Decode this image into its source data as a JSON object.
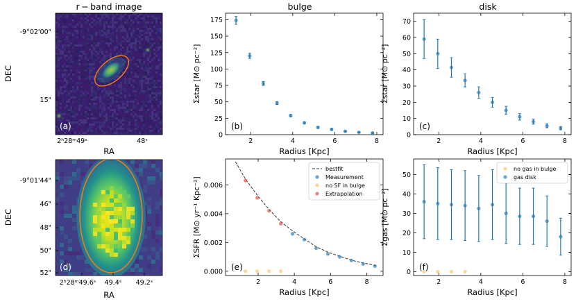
{
  "figure": {
    "col_titles": [
      "r − band image",
      "bulge",
      "disk"
    ]
  },
  "chart_data": [
    {
      "id": "a",
      "type": "image",
      "panel_label": "(a)",
      "xlabel": "RA",
      "ylabel": "DEC",
      "xticks": [
        "2ʰ28ᵐ49ˢ",
        "48ˢ"
      ],
      "yticks": [
        "-9°02'00\"",
        "15\""
      ],
      "colormap": "viridis",
      "ellipse_color": "#ff7f0e"
    },
    {
      "id": "b",
      "type": "scatter",
      "panel_label": "(b)",
      "xlabel": "Radius [Kpc]",
      "ylabel": "Σstar [M⊙ pc⁻²]",
      "xlim": [
        0.8,
        8.3
      ],
      "ylim": [
        0,
        185
      ],
      "xticks": [
        2,
        4,
        6,
        8
      ],
      "yticks": [
        0,
        25,
        50,
        75,
        100,
        125,
        150,
        175
      ],
      "series": [
        {
          "color": "#1f77b4",
          "x": [
            1.3,
            1.95,
            2.6,
            3.25,
            3.9,
            4.55,
            5.2,
            5.85,
            6.5,
            7.15,
            7.8
          ],
          "y": [
            174,
            120,
            78,
            48,
            29,
            18,
            11,
            8,
            5,
            3.5,
            2.5
          ],
          "err": [
            6,
            4,
            3,
            2,
            1.5,
            1.2,
            1,
            0.8,
            0.6,
            0.5,
            0.5
          ]
        }
      ]
    },
    {
      "id": "c",
      "type": "scatter",
      "panel_label": "(c)",
      "xlabel": "Radius [Kpc]",
      "ylabel": "Σstar [M⊙ pc⁻²]",
      "xlim": [
        0.8,
        8.3
      ],
      "ylim": [
        0,
        75
      ],
      "xticks": [
        2,
        4,
        6,
        8
      ],
      "yticks": [
        0,
        10,
        20,
        30,
        40,
        50,
        60,
        70
      ],
      "series": [
        {
          "color": "#1f77b4",
          "x": [
            1.3,
            1.95,
            2.6,
            3.25,
            3.9,
            4.55,
            5.2,
            5.85,
            6.5,
            7.15,
            7.8
          ],
          "y": [
            59,
            50,
            41.5,
            33.5,
            26,
            20,
            15,
            11,
            8,
            5.5,
            4
          ],
          "err": [
            12,
            9,
            6,
            4,
            3.5,
            3,
            2.5,
            2,
            1.5,
            1.2,
            1
          ]
        }
      ]
    },
    {
      "id": "d",
      "type": "image",
      "panel_label": "(d)",
      "xlabel": "RA",
      "ylabel": "DEC",
      "xticks": [
        "2ʰ28ᵐ49.6ˢ",
        "49.4ˢ",
        "49.2ˢ"
      ],
      "yticks": [
        "-9°01'44\"",
        "46\"",
        "48\"",
        "50\"",
        "52\""
      ],
      "colormap": "viridis",
      "ellipse_color": "#ff7f0e"
    },
    {
      "id": "e",
      "type": "scatter",
      "panel_label": "(e)",
      "xlabel": "Radius [Kpc]",
      "ylabel": "ΣSFR [M⊙ yr⁻¹ Kpc⁻²]",
      "xlim": [
        0.2,
        8.9
      ],
      "ylim": [
        -0.0003,
        0.0078
      ],
      "xticks": [
        2,
        4,
        6,
        8
      ],
      "yticks": [
        0.0,
        0.002,
        0.004,
        0.006
      ],
      "ytick_labels": [
        "0.000",
        "0.002",
        "0.004",
        "0.006"
      ],
      "legend": "top-right",
      "bestfit": {
        "name": "bestfit",
        "x": [
          0.75,
          1.3,
          2.0,
          2.6,
          3.2,
          3.9,
          4.6,
          5.2,
          5.9,
          6.6,
          7.2,
          7.9,
          8.5
        ],
        "y": [
          0.0076,
          0.0064,
          0.0052,
          0.0043,
          0.0035,
          0.0028,
          0.0022,
          0.0017,
          0.0013,
          0.001,
          0.00075,
          0.00055,
          0.0004
        ]
      },
      "series": [
        {
          "name": "Measurement",
          "color": "#1f77b4",
          "x": [
            3.9,
            4.55,
            5.2,
            5.85,
            6.5,
            7.15,
            7.8,
            8.45
          ],
          "y": [
            0.0026,
            0.0022,
            0.0016,
            0.0012,
            0.001,
            0.00075,
            0.0005,
            0.00035
          ]
        },
        {
          "name": "no SF in bulge",
          "color": "#ffbe5c",
          "x": [
            1.3,
            1.95,
            2.6,
            3.25
          ],
          "y": [
            0,
            0,
            0,
            0
          ]
        },
        {
          "name": "Extrapolation",
          "color": "#e8413c",
          "x": [
            1.3,
            1.95,
            2.6,
            3.25
          ],
          "y": [
            0.0063,
            0.0051,
            0.0042,
            0.0033
          ]
        }
      ]
    },
    {
      "id": "f",
      "type": "scatter",
      "panel_label": "(f)",
      "xlabel": "Radius [Kpc]",
      "ylabel": "Σgas [M⊙ pc⁻²]",
      "xlim": [
        0.8,
        8.3
      ],
      "ylim": [
        -2,
        58
      ],
      "xticks": [
        2,
        4,
        6,
        8
      ],
      "yticks": [
        0,
        10,
        20,
        30,
        40,
        50
      ],
      "legend": "top-right",
      "series": [
        {
          "name": "no gas in bulge",
          "color": "#ffbe5c",
          "x": [
            1.3,
            1.95,
            2.6,
            3.25
          ],
          "y": [
            0,
            0,
            0,
            0
          ]
        },
        {
          "name": "gas disk",
          "color": "#1f77b4",
          "x": [
            1.3,
            1.95,
            2.6,
            3.25,
            3.9,
            4.55,
            5.2,
            5.85,
            6.5,
            7.15,
            7.8
          ],
          "y": [
            36,
            35,
            34.5,
            34,
            32.5,
            34.5,
            30,
            28.5,
            28.5,
            26,
            18
          ],
          "err": [
            19,
            18.5,
            18,
            18,
            17,
            18,
            15.5,
            14.5,
            14.5,
            13,
            9.5
          ]
        }
      ]
    }
  ]
}
